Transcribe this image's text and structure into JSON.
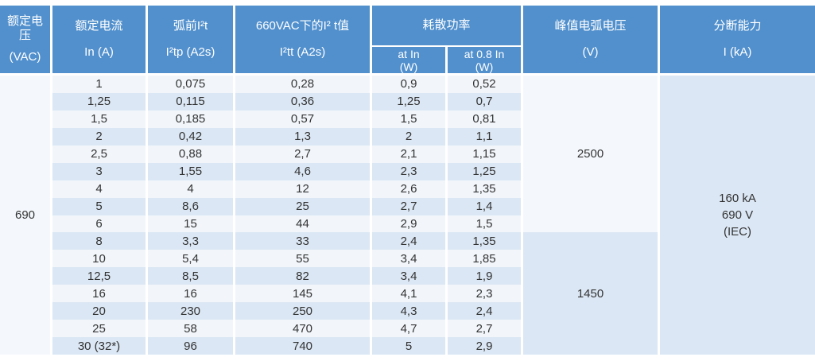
{
  "table": {
    "headers": {
      "rated_voltage": {
        "line1": "额定电压",
        "line2": "(VAC)"
      },
      "rated_current": {
        "line1": "额定电流",
        "line2": "In (A)"
      },
      "prearc_i2t": {
        "line1": "弧前I²t",
        "line2": "I²tp (A2s)"
      },
      "i2t_660vac": {
        "line1": "660VAC下的I² t值",
        "line2": "I²tt (A2s)"
      },
      "power_dissipation_group": {
        "label": "耗散功率"
      },
      "power_at_in": {
        "line1": "at In",
        "line2": "(W)"
      },
      "power_at_08in": {
        "line1": "at 0.8  In",
        "line2": "(W)"
      },
      "peak_arc_voltage": {
        "line1": "峰值电弧电压",
        "line2": "(V)"
      },
      "breaking_capacity": {
        "line1": "分断能力",
        "line2": "I (kA)"
      }
    },
    "merged": {
      "rated_voltage_value": "690",
      "peak_arc_voltage_group1": "2500",
      "peak_arc_voltage_group2": "1450",
      "breaking_capacity_line1": "160 kA",
      "breaking_capacity_line2": "690 V",
      "breaking_capacity_line3": "(IEC)"
    },
    "rows": [
      {
        "in": "1",
        "i2tp": "0,075",
        "i2tt": "0,28",
        "p_in": "0,9",
        "p_08in": "0,52"
      },
      {
        "in": "1,25",
        "i2tp": "0,115",
        "i2tt": "0,36",
        "p_in": "1,25",
        "p_08in": "0,7"
      },
      {
        "in": "1,5",
        "i2tp": "0,185",
        "i2tt": "0,57",
        "p_in": "1,5",
        "p_08in": "0,81"
      },
      {
        "in": "2",
        "i2tp": "0,42",
        "i2tt": "1,3",
        "p_in": "2",
        "p_08in": "1,1"
      },
      {
        "in": "2,5",
        "i2tp": "0,88",
        "i2tt": "2,7",
        "p_in": "2,1",
        "p_08in": "1,15"
      },
      {
        "in": "3",
        "i2tp": "1,55",
        "i2tt": "4,6",
        "p_in": "2,3",
        "p_08in": "1,25"
      },
      {
        "in": "4",
        "i2tp": "4",
        "i2tt": "12",
        "p_in": "2,6",
        "p_08in": "1,35"
      },
      {
        "in": "5",
        "i2tp": "8,6",
        "i2tt": "25",
        "p_in": "2,7",
        "p_08in": "1,4"
      },
      {
        "in": "6",
        "i2tp": "15",
        "i2tt": "44",
        "p_in": "2,9",
        "p_08in": "1,5"
      },
      {
        "in": "8",
        "i2tp": "3,3",
        "i2tt": "33",
        "p_in": "2,4",
        "p_08in": "1,35"
      },
      {
        "in": "10",
        "i2tp": "5,4",
        "i2tt": "55",
        "p_in": "3,4",
        "p_08in": "1,85"
      },
      {
        "in": "12,5",
        "i2tp": "8,5",
        "i2tt": "82",
        "p_in": "3,4",
        "p_08in": "1,9"
      },
      {
        "in": "16",
        "i2tp": "16",
        "i2tt": "145",
        "p_in": "4,1",
        "p_08in": "2,3"
      },
      {
        "in": "20",
        "i2tp": "230",
        "i2tt": "250",
        "p_in": "4,3",
        "p_08in": "2,4"
      },
      {
        "in": "25",
        "i2tp": "58",
        "i2tt": "470",
        "p_in": "4,7",
        "p_08in": "2,7"
      },
      {
        "in": "30 (32*)",
        "i2tp": "96",
        "i2tt": "740",
        "p_in": "5",
        "p_08in": "2,9"
      }
    ]
  },
  "colors": {
    "header_blue": "#5190cd",
    "stripe_light": "#f2f6fb",
    "stripe_blue": "#dbe7f4",
    "merged_light": "#f4f8fc",
    "text_dark": "#333333",
    "header_text": "#ffffff"
  }
}
